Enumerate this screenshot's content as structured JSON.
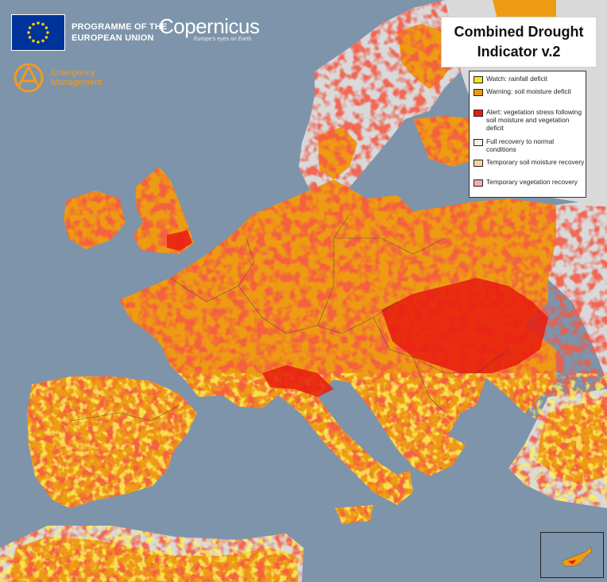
{
  "header": {
    "eu_programme": {
      "line1": "PROGRAMME OF THE",
      "line2": "EUROPEAN UNION"
    },
    "copernicus": {
      "name": "Copernicus",
      "tagline": "Europe's eyes on Earth"
    },
    "emergency_management": {
      "line1": "Emergency",
      "line2": "Management"
    }
  },
  "title": {
    "line1": "Combined Drought",
    "line2": "Indicator v.2"
  },
  "legend": {
    "items": [
      {
        "key": "watch",
        "label": "Watch: rainfall deficit",
        "color": "#f5e61c"
      },
      {
        "key": "warning",
        "label": "Warning: soil moisture deficit",
        "color": "#ee9b14"
      },
      {
        "key": "alert",
        "label": "Alert: vegetation stress following soil moisture and vegetation deficit",
        "color": "#e81b0f"
      },
      {
        "key": "full_recovery",
        "label": "Full recovery to normal conditions",
        "color": "#f2f2df"
      },
      {
        "key": "temp_soil",
        "label": "Temporary soil moisture recovery",
        "color": "#f6d59a"
      },
      {
        "key": "temp_veg",
        "label": "Temporary vegetation recovery",
        "color": "#f0aeb0"
      }
    ]
  },
  "colors": {
    "sea": "#7d94ab",
    "no_drought": "#d9d9d9",
    "eu_blue": "#003399",
    "brand_orange": "#f39a1e"
  }
}
